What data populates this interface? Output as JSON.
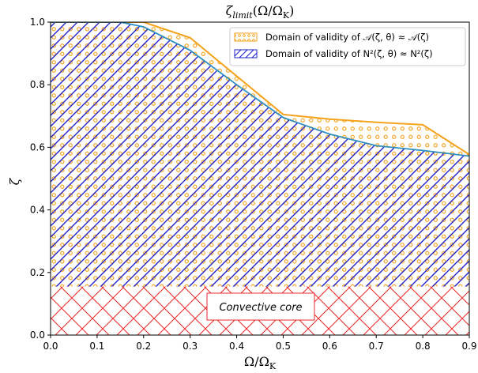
{
  "chart_data": {
    "type": "area",
    "title": "ζlimit(Ω/ΩK)",
    "title_main": "ζ",
    "title_sub": "limit",
    "title_rest": "(Ω/Ω",
    "title_k": "K",
    "title_close": ")",
    "xlabel_main": "Ω/Ω",
    "xlabel_sub": "K",
    "ylabel": "ζ",
    "xlim": [
      0.0,
      0.9
    ],
    "ylim": [
      0.0,
      1.0
    ],
    "xticks": [
      "0.0",
      "0.1",
      "0.2",
      "0.3",
      "0.4",
      "0.5",
      "0.6",
      "0.7",
      "0.8",
      "0.9"
    ],
    "yticks": [
      "0.0",
      "0.2",
      "0.4",
      "0.6",
      "0.8",
      "1.0"
    ],
    "grid": false,
    "legend_position": "top-right",
    "convective_core_limit": 0.155,
    "series": [
      {
        "name": "Domain of validity of 𝒜(ζ, θ) ≈ 𝒜(ζ)",
        "color": "#f5a21c",
        "hatch": "circles",
        "x": [
          0.0,
          0.15,
          0.2,
          0.3,
          0.5,
          0.6,
          0.7,
          0.8,
          0.9
        ],
        "y": [
          1.0,
          1.0,
          1.0,
          0.95,
          0.705,
          0.69,
          0.68,
          0.672,
          0.577
        ]
      },
      {
        "name": "Domain of validity of N²(ζ, θ) ≈ N²(ζ)",
        "color": "#2323c8",
        "hatch": "diagonal",
        "x": [
          0.0,
          0.15,
          0.2,
          0.3,
          0.4,
          0.5,
          0.6,
          0.7,
          0.8,
          0.9
        ],
        "y": [
          1.0,
          1.0,
          0.985,
          0.91,
          0.8,
          0.695,
          0.642,
          0.605,
          0.59,
          0.572
        ]
      }
    ],
    "annotation": "Convective core",
    "core_color": "#e8282a"
  }
}
